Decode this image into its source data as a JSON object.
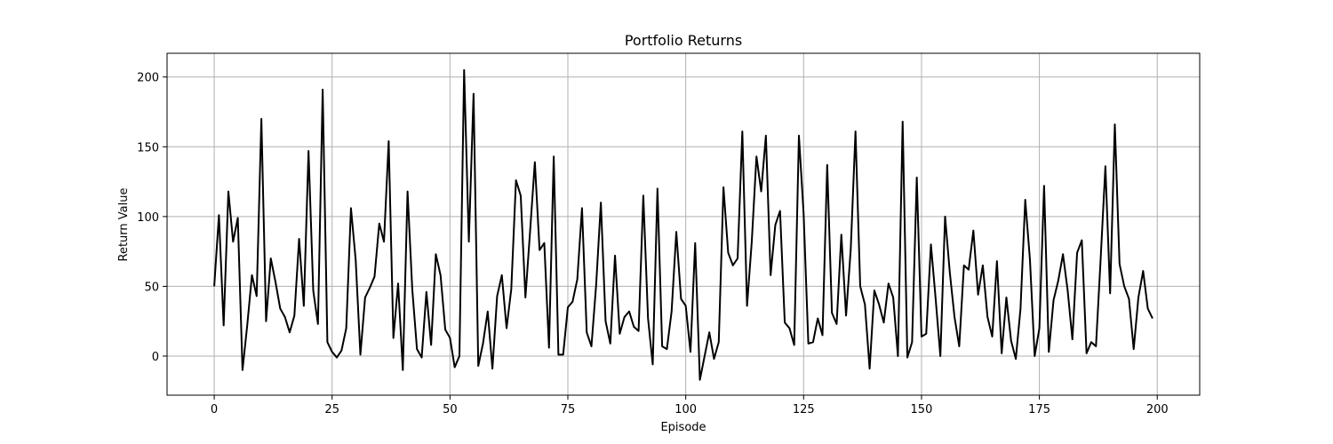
{
  "chart_data": {
    "type": "line",
    "title": "Portfolio Returns",
    "xlabel": "Episode",
    "ylabel": "Return Value",
    "xlim": [
      -10,
      209
    ],
    "ylim": [
      -28,
      217
    ],
    "xticks": [
      0,
      25,
      50,
      75,
      100,
      125,
      150,
      175,
      200
    ],
    "yticks": [
      0,
      50,
      100,
      150,
      200
    ],
    "grid": true,
    "legend": "none",
    "line_color": "#000000",
    "grid_color": "#b0b0b0",
    "series": [
      {
        "values": [
          50,
          101,
          22,
          118,
          82,
          99,
          -10,
          22,
          58,
          43,
          170,
          25,
          70,
          53,
          34,
          28,
          17,
          29,
          84,
          36,
          147,
          47,
          23,
          191,
          10,
          3,
          -1,
          4,
          20,
          106,
          69,
          1,
          42,
          49,
          57,
          95,
          82,
          154,
          13,
          52,
          -10,
          118,
          48,
          5,
          -1,
          46,
          8,
          73,
          58,
          19,
          13,
          -8,
          0,
          205,
          82,
          188,
          -7,
          9,
          32,
          -9,
          43,
          58,
          20,
          48,
          126,
          115,
          42,
          90,
          139,
          76,
          81,
          6,
          143,
          1,
          1,
          35,
          39,
          55,
          106,
          17,
          7,
          51,
          110,
          25,
          9,
          72,
          16,
          28,
          32,
          21,
          18,
          115,
          27,
          -6,
          120,
          7,
          5,
          32,
          89,
          41,
          36,
          3,
          81,
          -17,
          0,
          17,
          -2,
          10,
          121,
          74,
          65,
          70,
          161,
          36,
          82,
          143,
          118,
          158,
          58,
          94,
          104,
          24,
          20,
          8,
          158,
          102,
          9,
          10,
          27,
          15,
          137,
          31,
          23,
          87,
          29,
          77,
          161,
          50,
          37,
          -9,
          47,
          37,
          24,
          52,
          42,
          0,
          168,
          -1,
          10,
          128,
          14,
          16,
          80,
          41,
          0,
          100,
          60,
          28,
          7,
          65,
          62,
          90,
          44,
          65,
          28,
          14,
          68,
          2,
          42,
          11,
          -2,
          34,
          112,
          69,
          0,
          20,
          122,
          3,
          40,
          54,
          73,
          47,
          12,
          74,
          83,
          2,
          10,
          7,
          70,
          136,
          45,
          166,
          66,
          50,
          41,
          5,
          42,
          61,
          34,
          27
        ]
      }
    ]
  }
}
